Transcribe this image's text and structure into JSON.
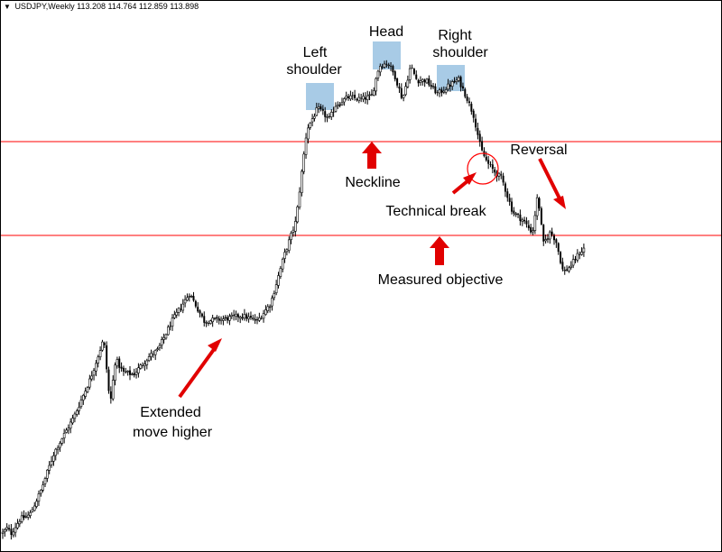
{
  "header": {
    "menu_icon": "dropdown-triangle-icon",
    "symbol": "USDJPY,Weekly",
    "ohlc": "113.208 114.764 112.859 113.898"
  },
  "colors": {
    "background": "#ffffff",
    "candles": "#000000",
    "horizontal_lines": "#ff0000",
    "highlight_boxes": "#a8cbe6",
    "arrows": "#e10000",
    "circle": "#ff0000"
  },
  "annotations": {
    "left_shoulder": [
      "Left",
      "shoulder"
    ],
    "head": "Head",
    "right_shoulder": [
      "Right",
      "shoulder"
    ],
    "neckline": "Neckline",
    "reversal": "Reversal",
    "technical_break": "Technical break",
    "measured_objective": "Measured objective",
    "extended_move": [
      "Extended",
      "move higher"
    ]
  },
  "chart_data": {
    "type": "candlestick",
    "symbol": "USDJPY",
    "timeframe": "Weekly",
    "pattern": "head and shoulders",
    "horizontal_lines": [
      "neckline",
      "measured objective"
    ],
    "path": [
      [
        0,
        3
      ],
      [
        8,
        10
      ],
      [
        12,
        5
      ],
      [
        22,
        18
      ],
      [
        33,
        22
      ],
      [
        45,
        43
      ],
      [
        60,
        78
      ],
      [
        82,
        110
      ],
      [
        100,
        144
      ],
      [
        115,
        180
      ],
      [
        122,
        120
      ],
      [
        128,
        162
      ],
      [
        136,
        150
      ],
      [
        148,
        148
      ],
      [
        165,
        164
      ],
      [
        175,
        170
      ],
      [
        190,
        195
      ],
      [
        210,
        221
      ],
      [
        226,
        196
      ],
      [
        250,
        198
      ],
      [
        268,
        201
      ],
      [
        285,
        196
      ],
      [
        300,
        212
      ],
      [
        315,
        255
      ],
      [
        328,
        286
      ],
      [
        340,
        368
      ],
      [
        352,
        387
      ],
      [
        365,
        377
      ],
      [
        372,
        390
      ],
      [
        386,
        397
      ],
      [
        400,
        395
      ],
      [
        412,
        398
      ],
      [
        420,
        425
      ],
      [
        430,
        428
      ],
      [
        438,
        415
      ],
      [
        446,
        395
      ],
      [
        455,
        425
      ],
      [
        462,
        412
      ],
      [
        472,
        412
      ],
      [
        485,
        400
      ],
      [
        497,
        407
      ],
      [
        508,
        413
      ],
      [
        518,
        395
      ],
      [
        525,
        380
      ],
      [
        533,
        350
      ],
      [
        540,
        338
      ],
      [
        548,
        330
      ],
      [
        556,
        324
      ],
      [
        568,
        294
      ],
      [
        580,
        286
      ],
      [
        590,
        275
      ],
      [
        596,
        310
      ],
      [
        602,
        265
      ],
      [
        610,
        276
      ],
      [
        616,
        268
      ],
      [
        624,
        240
      ],
      [
        632,
        245
      ],
      [
        640,
        255
      ],
      [
        648,
        262
      ]
    ],
    "ylim": [
      0,
      460
    ]
  }
}
